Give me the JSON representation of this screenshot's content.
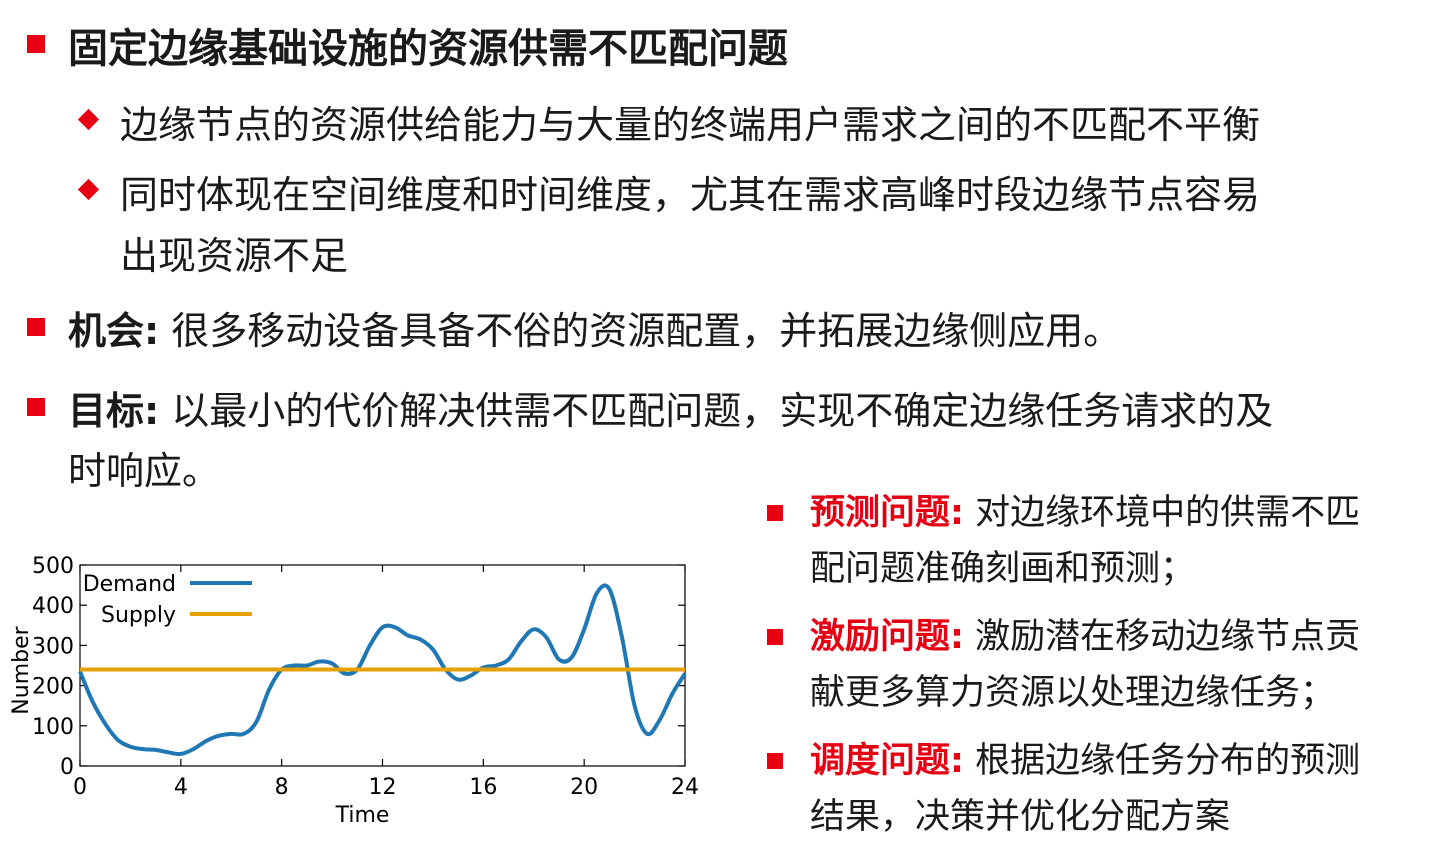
{
  "heading": "固定边缘基础设施的资源供需不匹配问题",
  "sub_bullets": [
    "边缘节点的资源供给能力与大量的终端用户需求之间的不匹配不平衡",
    "同时体现在空间维度和时间维度，尤其在需求高峰时段边缘节点容易",
    "出现资源不足"
  ],
  "opportunity": {
    "label": "机会:",
    "text": " 很多移动设备具备不俗的资源配置，并拓展边缘侧应用。"
  },
  "goal": {
    "label": "目标:",
    "line1": "  以最小的代价解决供需不匹配问题，实现不确定边缘任务请求的及",
    "line2": "时响应。"
  },
  "problems": [
    {
      "label": "预测问题:",
      "line1": " 对边缘环境中的供需不匹",
      "line2": "配问题准确刻画和预测；"
    },
    {
      "label": "激励问题:",
      "line1": " 激励潜在移动边缘节点贡",
      "line2": "献更多算力资源以处理边缘任务；"
    },
    {
      "label": "调度问题:",
      "line1": " 根据边缘任务分布的预测",
      "line2": "结果，决策并优化分配方案"
    }
  ],
  "chart_data": {
    "type": "line",
    "xlabel": "Time",
    "ylabel": "Number",
    "xlim": [
      0,
      24
    ],
    "ylim": [
      0,
      500
    ],
    "xticks": [
      0,
      4,
      8,
      12,
      16,
      20,
      24
    ],
    "yticks": [
      0,
      100,
      200,
      300,
      400,
      500
    ],
    "legend_position": "top-left",
    "series": [
      {
        "name": "Demand",
        "color": "#1f77b4",
        "x": [
          0,
          0.5,
          1,
          1.5,
          2,
          2.5,
          3,
          3.5,
          4,
          4.5,
          5,
          5.5,
          6,
          6.5,
          7,
          7.5,
          8,
          8.5,
          9,
          9.5,
          10,
          10.5,
          11,
          11.5,
          12,
          12.5,
          13,
          13.5,
          14,
          14.5,
          15,
          15.5,
          16,
          16.5,
          17,
          17.5,
          18,
          18.5,
          19,
          19.5,
          20,
          20.5,
          21,
          21.5,
          22,
          22.5,
          23,
          23.5,
          24
        ],
        "y": [
          235,
          160,
          105,
          65,
          48,
          42,
          40,
          34,
          30,
          42,
          62,
          75,
          80,
          80,
          110,
          190,
          240,
          250,
          250,
          260,
          255,
          230,
          240,
          300,
          345,
          345,
          325,
          315,
          290,
          240,
          215,
          225,
          245,
          250,
          265,
          310,
          340,
          320,
          265,
          270,
          340,
          430,
          440,
          320,
          150,
          80,
          115,
          180,
          230
        ]
      },
      {
        "name": "Supply",
        "color": "#e6a000",
        "x": [
          0,
          24
        ],
        "y": [
          240,
          240
        ]
      }
    ]
  }
}
